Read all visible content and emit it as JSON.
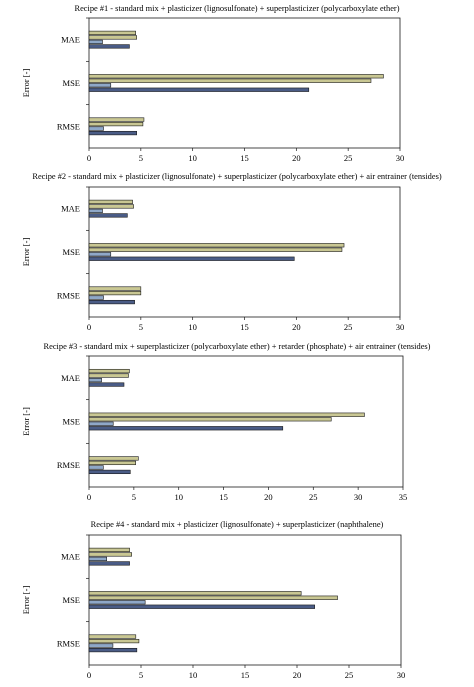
{
  "colors": {
    "bar_1": "#c9c793",
    "bar_2": "#c9c793",
    "bar_3": "#8fa8c8",
    "bar_4": "#4a5c86",
    "stroke": "#1a1a1a"
  },
  "chart_data": [
    {
      "type": "bar",
      "orientation": "horizontal",
      "title": "Recipe #1 - standard mix + plasticizer (lignosulfonate) + superplasticizer (polycarboxylate ether)",
      "ylabel": "Error [-]",
      "xlabel": "",
      "xlim": [
        0,
        30
      ],
      "xticks": [
        0,
        5,
        10,
        15,
        20,
        25,
        30
      ],
      "categories": [
        "MAE",
        "MSE",
        "RMSE"
      ],
      "series": [
        {
          "values": [
            4.5,
            28.4,
            5.3
          ]
        },
        {
          "values": [
            4.6,
            27.2,
            5.2
          ]
        },
        {
          "values": [
            1.3,
            2.1,
            1.4
          ]
        },
        {
          "values": [
            3.9,
            21.2,
            4.6
          ]
        }
      ],
      "grid": false
    },
    {
      "type": "bar",
      "orientation": "horizontal",
      "title": "Recipe #2 - standard mix + plasticizer (lignosulfonate) + superplasticizer (polycarboxylate ether) + air entrainer (tensides)",
      "ylabel": "Error [-]",
      "xlabel": "",
      "xlim": [
        0,
        30
      ],
      "xticks": [
        0,
        5,
        10,
        15,
        20,
        25,
        30
      ],
      "categories": [
        "MAE",
        "MSE",
        "RMSE"
      ],
      "series": [
        {
          "values": [
            4.2,
            24.6,
            5.0
          ]
        },
        {
          "values": [
            4.3,
            24.4,
            5.0
          ]
        },
        {
          "values": [
            1.3,
            2.1,
            1.4
          ]
        },
        {
          "values": [
            3.7,
            19.8,
            4.4
          ]
        }
      ],
      "grid": false
    },
    {
      "type": "bar",
      "orientation": "horizontal",
      "title": "Recipe #3 - standard mix + superplasticizer (polycarboxylate ether) + retarder (phosphate) + air entrainer (tensides)",
      "ylabel": "Error [-]",
      "xlabel": "",
      "xlim": [
        0,
        35
      ],
      "xticks": [
        0,
        5,
        10,
        15,
        20,
        25,
        30,
        35
      ],
      "categories": [
        "MAE",
        "MSE",
        "RMSE"
      ],
      "series": [
        {
          "values": [
            4.5,
            30.7,
            5.5
          ]
        },
        {
          "values": [
            4.4,
            27.0,
            5.2
          ]
        },
        {
          "values": [
            1.4,
            2.7,
            1.6
          ]
        },
        {
          "values": [
            3.9,
            21.6,
            4.6
          ]
        }
      ],
      "grid": false
    },
    {
      "type": "bar",
      "orientation": "horizontal",
      "title": "Recipe #4 - standard mix + plasticizer (lignosulfonate) + superplasticizer (naphthalene)",
      "ylabel": "Error [-]",
      "xlabel": "",
      "xlim": [
        0,
        30
      ],
      "xticks": [
        0,
        5,
        10,
        15,
        20,
        25,
        30
      ],
      "categories": [
        "MAE",
        "MSE",
        "RMSE"
      ],
      "series": [
        {
          "values": [
            3.9,
            20.4,
            4.5
          ]
        },
        {
          "values": [
            4.1,
            23.9,
            4.8
          ]
        },
        {
          "values": [
            1.7,
            5.4,
            2.3
          ]
        },
        {
          "values": [
            3.9,
            21.7,
            4.6
          ]
        }
      ],
      "grid": false
    }
  ]
}
